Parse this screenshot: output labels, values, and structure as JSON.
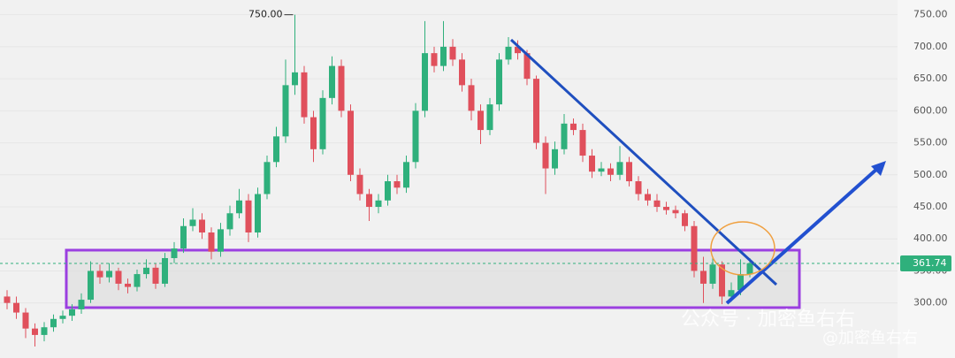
{
  "chart_data": {
    "type": "candlestick",
    "ylim": [
      214,
      773
    ],
    "yticks": [
      {
        "value": 300,
        "label": "300.00"
      },
      {
        "value": 350,
        "label": "350.00"
      },
      {
        "value": 400,
        "label": "400.00"
      },
      {
        "value": 450,
        "label": "450.00"
      },
      {
        "value": 500,
        "label": "500.00"
      },
      {
        "value": 550,
        "label": "550.00"
      },
      {
        "value": 600,
        "label": "600.00"
      },
      {
        "value": 650,
        "label": "650.00"
      },
      {
        "value": 700,
        "label": "700.00"
      },
      {
        "value": 750,
        "label": "750.00"
      }
    ],
    "grid": true,
    "up_color": "#2fb07c",
    "down_color": "#e0505c",
    "open": [
      310,
      300,
      285,
      260,
      250,
      262,
      275,
      280,
      290,
      305,
      350,
      340,
      350,
      330,
      325,
      345,
      355,
      330,
      370,
      385,
      420,
      430,
      410,
      380,
      415,
      440,
      460,
      410,
      470,
      520,
      560,
      640,
      660,
      590,
      540,
      620,
      670,
      600,
      500,
      470,
      450,
      460,
      490,
      480,
      520,
      600,
      690,
      670,
      700,
      680,
      640,
      600,
      570,
      610,
      680,
      700,
      690,
      650,
      550,
      510,
      540,
      580,
      570,
      530,
      505,
      510,
      500,
      520,
      490,
      470,
      460,
      450,
      445,
      440,
      420,
      350,
      330,
      360,
      310,
      320,
      345
    ],
    "high": [
      320,
      310,
      292,
      268,
      270,
      282,
      288,
      298,
      315,
      365,
      360,
      362,
      355,
      338,
      352,
      368,
      362,
      378,
      395,
      432,
      448,
      440,
      418,
      425,
      452,
      478,
      470,
      480,
      530,
      575,
      680,
      750,
      670,
      600,
      632,
      685,
      680,
      610,
      510,
      478,
      470,
      500,
      500,
      530,
      612,
      740,
      700,
      740,
      712,
      690,
      650,
      610,
      620,
      690,
      715,
      710,
      695,
      655,
      560,
      552,
      595,
      588,
      580,
      540,
      520,
      518,
      545,
      528,
      498,
      478,
      470,
      458,
      452,
      445,
      428,
      372,
      370,
      365,
      332,
      368,
      370
    ],
    "low": [
      290,
      275,
      245,
      232,
      240,
      255,
      268,
      272,
      283,
      300,
      330,
      332,
      320,
      315,
      318,
      338,
      322,
      325,
      362,
      378,
      412,
      400,
      368,
      372,
      405,
      432,
      395,
      402,
      462,
      512,
      550,
      625,
      580,
      520,
      532,
      610,
      590,
      490,
      460,
      428,
      440,
      452,
      470,
      472,
      510,
      590,
      660,
      662,
      670,
      630,
      585,
      548,
      562,
      600,
      672,
      680,
      640,
      540,
      470,
      500,
      532,
      562,
      520,
      495,
      498,
      490,
      492,
      482,
      460,
      452,
      442,
      438,
      432,
      412,
      340,
      300,
      322,
      298,
      302,
      312,
      340
    ],
    "close": [
      300,
      285,
      260,
      250,
      262,
      275,
      280,
      290,
      305,
      350,
      340,
      350,
      330,
      325,
      345,
      355,
      330,
      370,
      385,
      420,
      430,
      410,
      380,
      415,
      440,
      460,
      410,
      470,
      520,
      560,
      640,
      660,
      590,
      540,
      620,
      670,
      600,
      500,
      470,
      450,
      460,
      490,
      480,
      520,
      600,
      690,
      670,
      700,
      680,
      640,
      600,
      570,
      610,
      680,
      700,
      690,
      650,
      550,
      510,
      540,
      580,
      570,
      530,
      505,
      510,
      500,
      520,
      490,
      470,
      460,
      450,
      445,
      440,
      420,
      350,
      330,
      360,
      310,
      320,
      345,
      362
    ],
    "max_marker": {
      "value": 750,
      "label": "750.00"
    },
    "last_price": 361.74,
    "watermark": "公众号 · 加密鱼右右",
    "watermark_handle": "@加密鱼右右"
  }
}
